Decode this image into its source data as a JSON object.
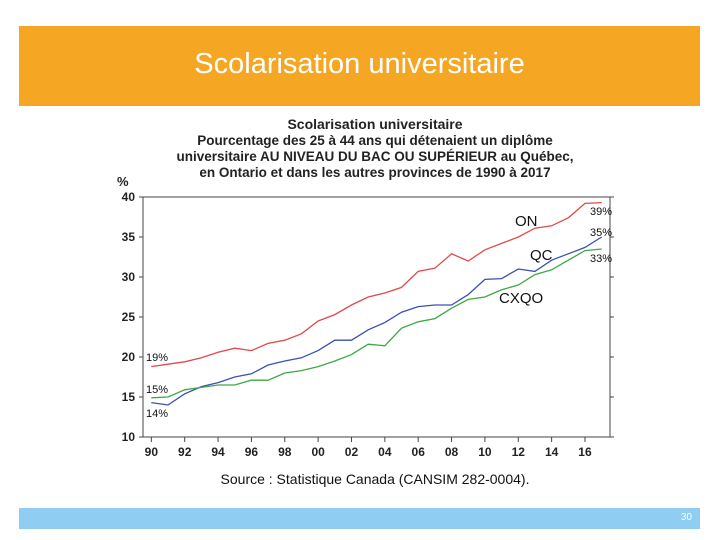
{
  "header": {
    "title": "Scolarisation universitaire"
  },
  "chart_data": {
    "type": "line",
    "title": "Scolarisation universitaire",
    "subtitle_lines": [
      "Pourcentage des 25 à 44 ans qui détenaient un diplôme",
      "universitaire AU NIVEAU DU BAC OU SUPÉRIEUR au Québec,",
      "en Ontario et dans les autres provinces de 1990 à 2017"
    ],
    "ylabel": "%",
    "ylim": [
      10,
      40
    ],
    "yticks": [
      10,
      15,
      20,
      25,
      30,
      35,
      40
    ],
    "xlim": [
      1989.5,
      2017.5
    ],
    "xticks": [
      1990,
      1992,
      1994,
      1996,
      1998,
      2000,
      2002,
      2004,
      2006,
      2008,
      2010,
      2012,
      2014,
      2016
    ],
    "xtick_labels": [
      "90",
      "92",
      "94",
      "96",
      "98",
      "00",
      "02",
      "04",
      "06",
      "08",
      "10",
      "12",
      "14",
      "16"
    ],
    "x": [
      1990,
      1991,
      1992,
      1993,
      1994,
      1995,
      1996,
      1997,
      1998,
      1999,
      2000,
      2001,
      2002,
      2003,
      2004,
      2005,
      2006,
      2007,
      2008,
      2009,
      2010,
      2011,
      2012,
      2013,
      2014,
      2015,
      2016,
      2017
    ],
    "series": [
      {
        "name": "ON",
        "color": "#e04a4a",
        "start_label": "19%",
        "end_label": "39%",
        "values": [
          18.8,
          19.1,
          19.4,
          19.9,
          20.6,
          21.1,
          20.8,
          21.7,
          22.1,
          22.9,
          24.5,
          25.3,
          26.5,
          27.5,
          28.0,
          28.7,
          30.7,
          31.1,
          32.9,
          32.0,
          33.4,
          34.2,
          35.0,
          36.1,
          36.4,
          37.4,
          39.2,
          39.3
        ]
      },
      {
        "name": "QC",
        "color": "#3a4fb8",
        "start_label": "14%",
        "end_label": "35%",
        "values": [
          14.3,
          14.0,
          15.4,
          16.3,
          16.8,
          17.5,
          17.9,
          19.0,
          19.5,
          19.9,
          20.8,
          22.1,
          22.1,
          23.4,
          24.3,
          25.6,
          26.3,
          26.5,
          26.5,
          27.8,
          29.7,
          29.8,
          31.0,
          30.7,
          32.1,
          32.9,
          33.7,
          35.0
        ]
      },
      {
        "name": "CXQO",
        "color": "#3ea843",
        "start_label": "15%",
        "end_label": "33%",
        "values": [
          14.9,
          15.0,
          15.9,
          16.2,
          16.5,
          16.5,
          17.1,
          17.1,
          18.0,
          18.3,
          18.8,
          19.5,
          20.3,
          21.6,
          21.4,
          23.6,
          24.4,
          24.8,
          26.1,
          27.2,
          27.5,
          28.4,
          29.0,
          30.3,
          30.9,
          32.1,
          33.3,
          33.5
        ]
      }
    ],
    "annotations": [
      "ON",
      "QC",
      "CXQO"
    ],
    "source": "Source : Statistique Canada (CANSIM 282-0004)."
  },
  "footer": {
    "page_number": "30"
  }
}
